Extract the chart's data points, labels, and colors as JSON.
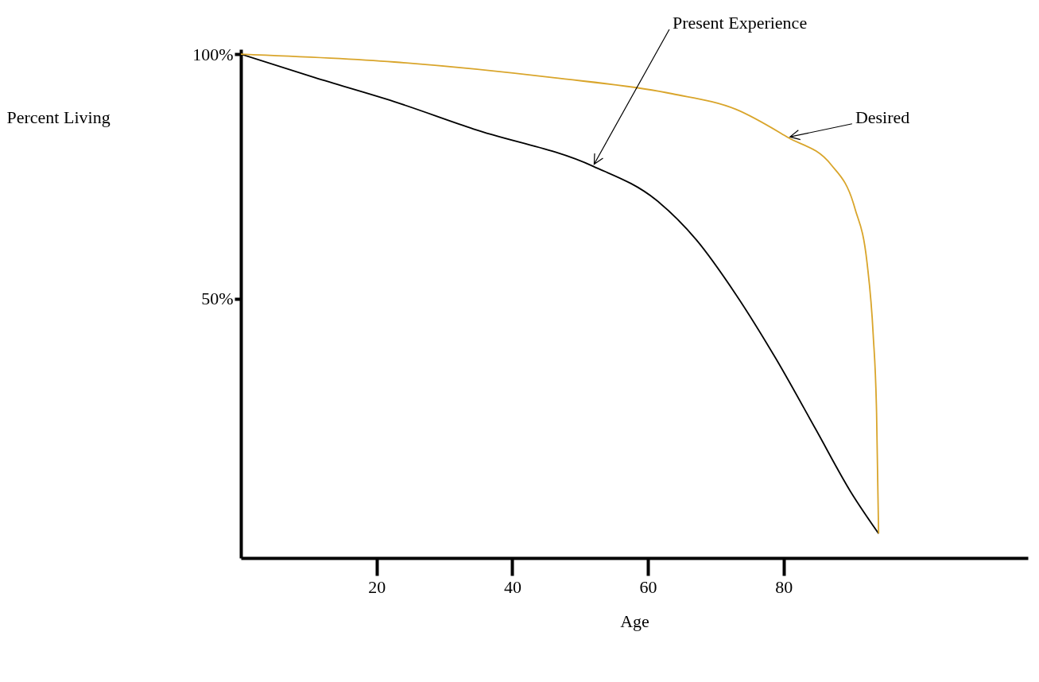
{
  "chart_data": {
    "type": "line",
    "xlabel": "Age",
    "ylabel": "Percent Living",
    "xlim": [
      0,
      116
    ],
    "ylim": [
      -3,
      101
    ],
    "xticks": [
      20,
      40,
      60,
      80
    ],
    "yticks": [
      {
        "value": 50,
        "label": "50%"
      },
      {
        "value": 100,
        "label": "100%"
      }
    ],
    "grid": false,
    "marker": "none",
    "line_style": "solid",
    "series": [
      {
        "color": "#000000",
        "x": [
          0,
          10.9,
          22.6,
          34.3,
          51.9,
          61.2,
          67.1,
          73,
          78.8,
          84.7,
          89.9,
          94
        ],
        "values": [
          100,
          95.2,
          90.3,
          84.7,
          77.1,
          70.2,
          62.1,
          50.8,
          37.9,
          23.4,
          10.5,
          2
        ]
      },
      {
        "color": "#d9a52b",
        "x": [
          0,
          22.6,
          46,
          63.6,
          73,
          80.6,
          87,
          90.5,
          92.3,
          93.2,
          93.7,
          94
        ],
        "values": [
          100,
          98.4,
          95.2,
          91.9,
          88.7,
          83,
          77.4,
          68.5,
          57.3,
          42.7,
          26.6,
          2
        ]
      }
    ],
    "annotations": [
      {
        "text": "Present Experience",
        "x": 51.9,
        "y": 77.1
      },
      {
        "text": "Desired",
        "x": 80.6,
        "y": 83
      }
    ]
  }
}
